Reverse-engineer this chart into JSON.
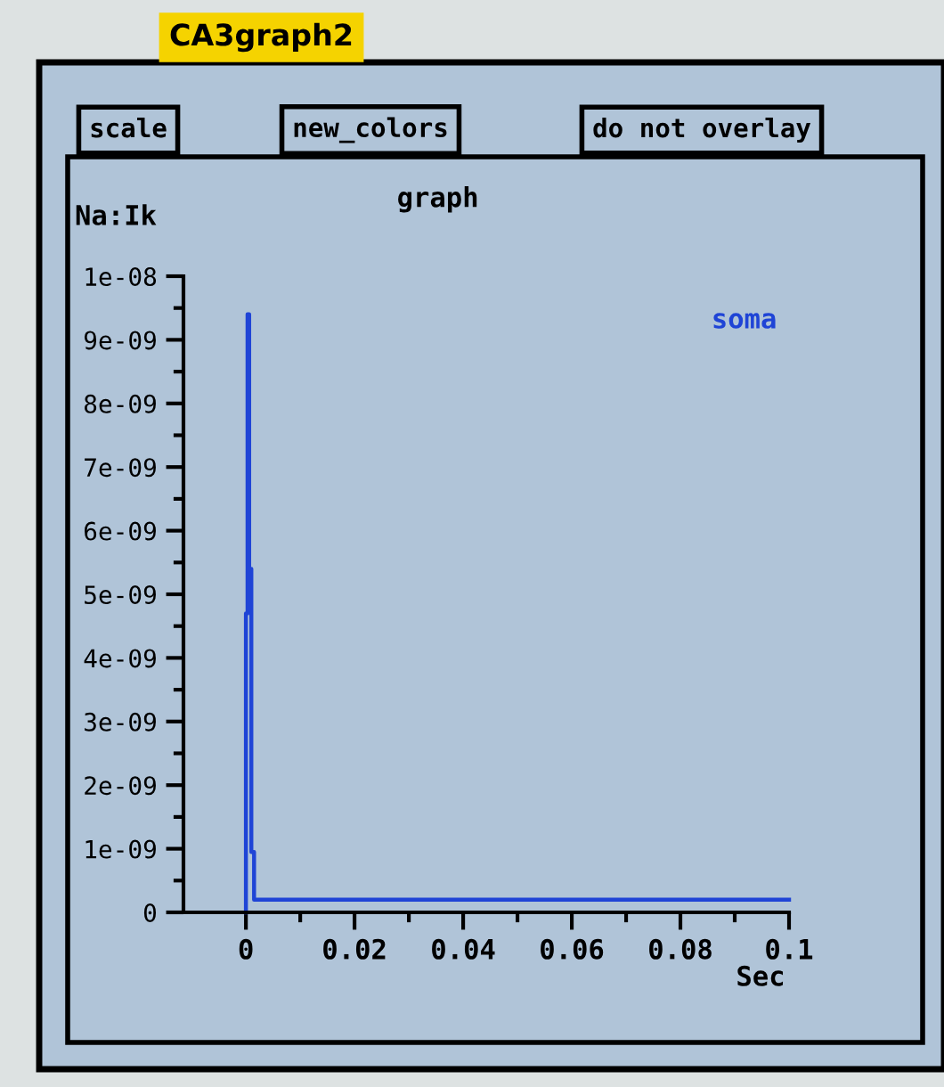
{
  "chart_data": {
    "type": "line",
    "title": "graph",
    "ylabel": "Na:Ik",
    "xlabel": "Sec",
    "annotations": [
      "CA3graph2",
      "scale",
      "new_colors",
      "do not overlay"
    ],
    "series": [
      {
        "name": "soma",
        "color": "#1f44d6",
        "x": [
          0,
          0,
          0.0003,
          0.0003,
          0.0006,
          0.0006,
          0.001,
          0.001,
          0.0015,
          0.0015,
          0.1
        ],
        "values": [
          0,
          4.7e-09,
          4.7e-09,
          9.4e-09,
          9.4e-09,
          5.4e-09,
          5.4e-09,
          9.5e-10,
          9.5e-10,
          2e-10,
          2e-10
        ]
      }
    ],
    "xlim": [
      -0.0115,
      0.1
    ],
    "ylim": [
      0,
      1e-08
    ],
    "xticks": [
      0,
      {
        "value": 0.01,
        "label": null
      },
      {
        "value": 0.02,
        "label": "0.02"
      },
      {
        "value": 0.03,
        "label": null
      },
      {
        "value": 0.04,
        "label": "0.04"
      },
      {
        "value": 0.05,
        "label": null
      },
      {
        "value": 0.06,
        "label": "0.06"
      },
      {
        "value": 0.07,
        "label": null
      },
      {
        "value": 0.08,
        "label": "0.08"
      },
      {
        "value": 0.09,
        "label": null
      },
      {
        "value": 0.1,
        "label": "0.1"
      }
    ],
    "yticks": [
      0,
      {
        "value": 5e-10,
        "label": null
      },
      {
        "value": 1e-09,
        "label": "1e-09"
      },
      {
        "value": 1.5e-09,
        "label": null
      },
      {
        "value": 2e-09,
        "label": "2e-09"
      },
      {
        "value": 2.5e-09,
        "label": null
      },
      {
        "value": 3e-09,
        "label": "3e-09"
      },
      {
        "value": 3.5e-09,
        "label": null
      },
      {
        "value": 4e-09,
        "label": "4e-09"
      },
      {
        "value": 4.5e-09,
        "label": null
      },
      {
        "value": 5e-09,
        "label": "5e-09"
      },
      {
        "value": 5.5e-09,
        "label": null
      },
      {
        "value": 6e-09,
        "label": "6e-09"
      },
      {
        "value": 6.5e-09,
        "label": null
      },
      {
        "value": 7e-09,
        "label": "7e-09"
      },
      {
        "value": 7.5e-09,
        "label": null
      },
      {
        "value": 8e-09,
        "label": "8e-09"
      },
      {
        "value": 8.5e-09,
        "label": null
      },
      {
        "value": 9e-09,
        "label": "9e-09"
      },
      {
        "value": 9.5e-09,
        "label": null
      },
      {
        "value": 1e-08,
        "label": "1e-08"
      }
    ],
    "grid": false,
    "legend": "top right",
    "marker": "none",
    "line_style": "solid"
  }
}
